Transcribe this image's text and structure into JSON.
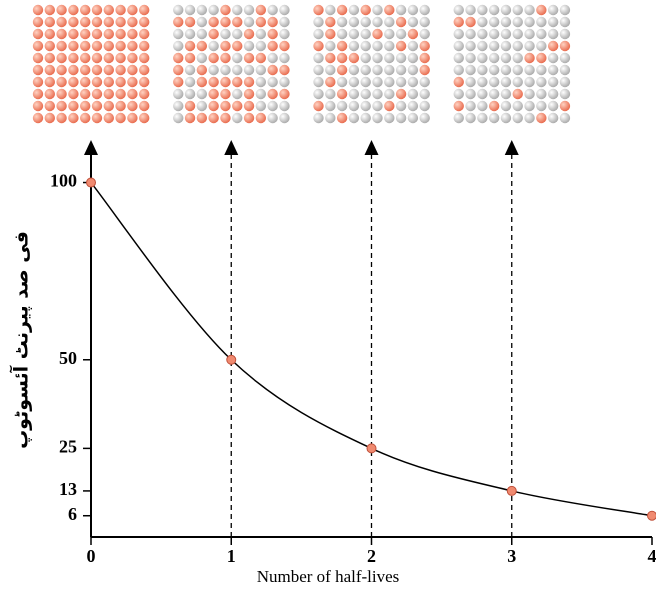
{
  "chart_data": {
    "type": "line",
    "x": [
      0,
      1,
      2,
      3,
      4
    ],
    "values": [
      100,
      50,
      25,
      13,
      6
    ],
    "xlim": [
      0,
      4
    ],
    "xticks": [
      0,
      1,
      2,
      3,
      4
    ],
    "ylim": [
      0,
      112
    ],
    "yticks": [
      6,
      13,
      25,
      50,
      100
    ],
    "xlabel": "Number of half-lives",
    "ylabel": "فی صد پیرنٹ آئسوٹوپ",
    "color": "#f08a70"
  }
}
